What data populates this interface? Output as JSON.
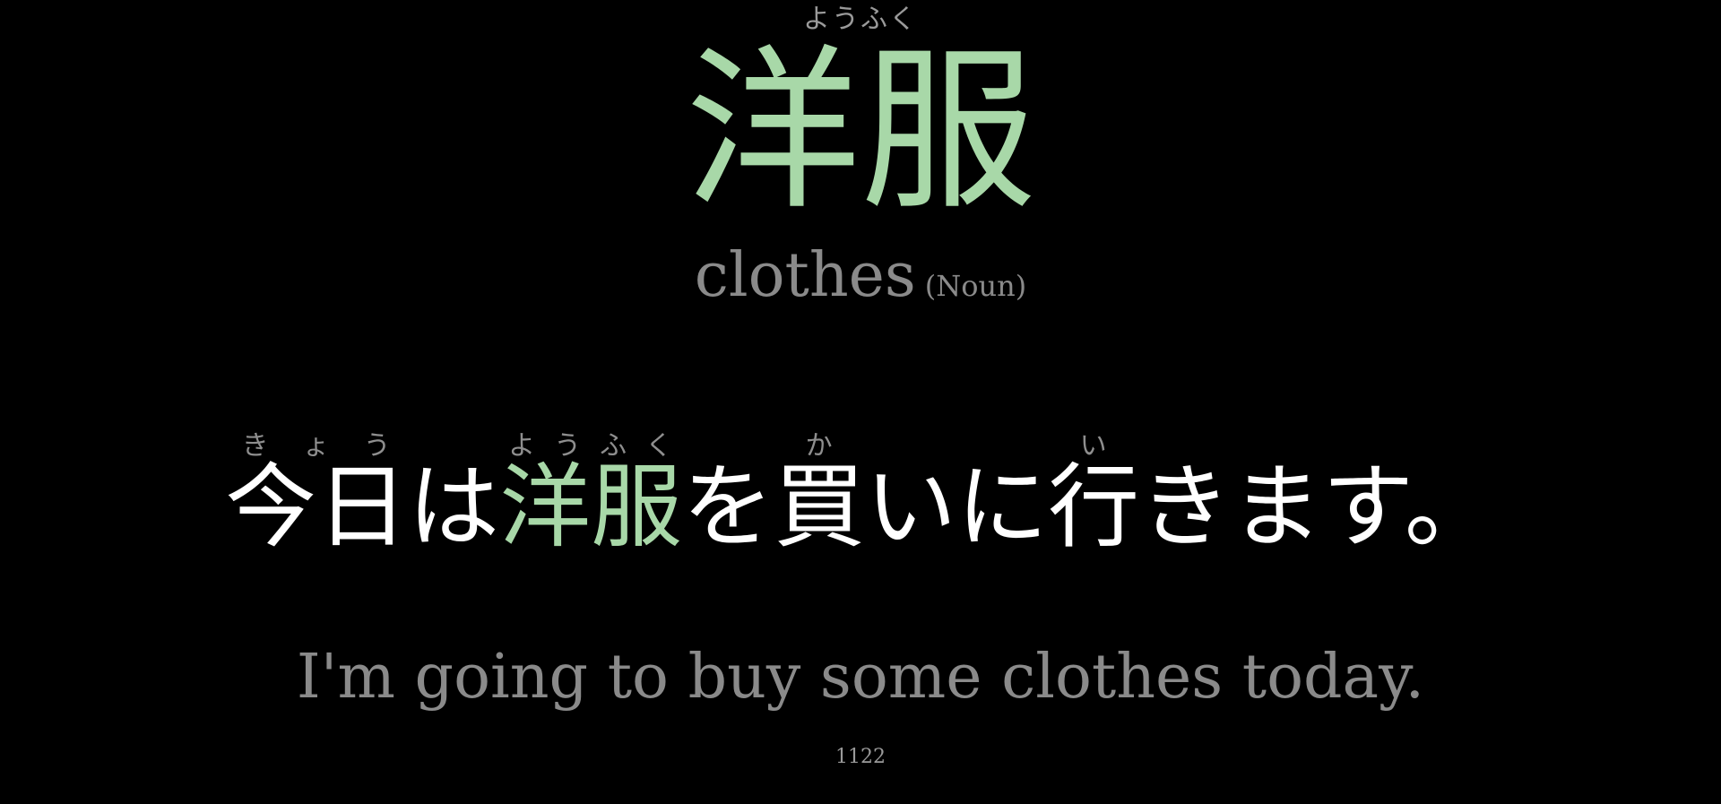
{
  "headword": {
    "reading": "ようふく",
    "kanji": "洋服"
  },
  "gloss": {
    "meaning": "clothes",
    "part_of_speech": "(Noun)"
  },
  "sentence": {
    "segments": [
      {
        "text": "今日",
        "reading": "きょう"
      },
      {
        "text": "は"
      },
      {
        "text": "洋服",
        "reading": "ようふく",
        "highlight": true
      },
      {
        "text": "を"
      },
      {
        "text": "買",
        "reading": "か"
      },
      {
        "text": "いに"
      },
      {
        "text": "行",
        "reading": "い"
      },
      {
        "text": "きます。"
      }
    ]
  },
  "translation": "I'm going to buy some clothes today.",
  "card_number": "1122",
  "colors": {
    "background": "#000000",
    "highlight": "#a8d8a8",
    "muted": "#8a8a8a",
    "text": "#ffffff"
  }
}
